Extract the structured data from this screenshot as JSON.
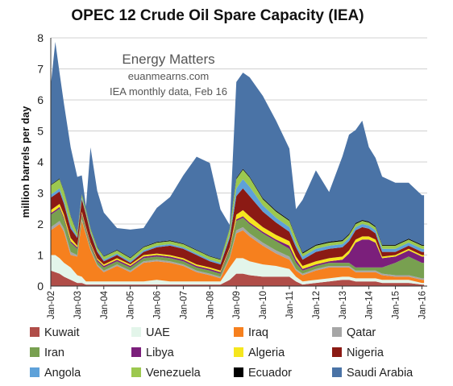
{
  "chart_data": {
    "type": "area",
    "stacked": true,
    "title": "OPEC 12 Crude Oil Spare Capacity (IEA)",
    "ylabel": "million barrels per day",
    "ylim": [
      0,
      8
    ],
    "yticks": [
      "0",
      "1",
      "2",
      "3",
      "4",
      "5",
      "6",
      "7",
      "8"
    ],
    "xlim": [
      2002,
      2016.2
    ],
    "xticks": [
      "Jan-02",
      "Jan-03",
      "Jan-04",
      "Jan-05",
      "Jan-06",
      "Jan-07",
      "Jan-08",
      "Jan-09",
      "Jan-10",
      "Jan-11",
      "Jan-12",
      "Jan-13",
      "Jan-14",
      "Jan-15",
      "Jan-16"
    ],
    "annotations": [
      "Energy Matters",
      "euanmearns.com",
      "IEA monthly data, Feb 16"
    ],
    "grid": "y",
    "legend_position": "bottom",
    "x": [
      2002.0,
      2002.17,
      2002.33,
      2002.5,
      2002.75,
      2003.0,
      2003.17,
      2003.33,
      2003.5,
      2003.75,
      2004.0,
      2004.5,
      2005.0,
      2005.5,
      2006.0,
      2006.5,
      2007.0,
      2007.5,
      2008.0,
      2008.4,
      2008.75,
      2009.0,
      2009.25,
      2009.5,
      2010.0,
      2010.5,
      2011.0,
      2011.25,
      2011.5,
      2012.0,
      2012.5,
      2013.0,
      2013.25,
      2013.5,
      2013.75,
      2014.0,
      2014.25,
      2014.5,
      2015.0,
      2015.5,
      2016.0,
      2016.08
    ],
    "series": [
      {
        "name": "Kuwait",
        "color": "#b04d48",
        "values": [
          0.5,
          0.45,
          0.4,
          0.3,
          0.2,
          0.1,
          0.1,
          0.05,
          0.05,
          0.05,
          0.05,
          0.05,
          0.05,
          0.05,
          0.05,
          0.05,
          0.05,
          0.05,
          0.05,
          0.05,
          0.2,
          0.4,
          0.4,
          0.35,
          0.3,
          0.3,
          0.3,
          0.15,
          0.05,
          0.1,
          0.15,
          0.2,
          0.2,
          0.15,
          0.15,
          0.15,
          0.15,
          0.1,
          0.1,
          0.1,
          0.05,
          0.05
        ]
      },
      {
        "name": "UAE",
        "color": "#e3f5ea",
        "values": [
          0.5,
          0.55,
          0.5,
          0.45,
          0.4,
          0.25,
          0.2,
          0.1,
          0.1,
          0.1,
          0.1,
          0.1,
          0.1,
          0.1,
          0.15,
          0.1,
          0.1,
          0.1,
          0.1,
          0.1,
          0.4,
          0.5,
          0.5,
          0.45,
          0.4,
          0.35,
          0.25,
          0.15,
          0.1,
          0.1,
          0.1,
          0.1,
          0.1,
          0.1,
          0.1,
          0.1,
          0.1,
          0.1,
          0.1,
          0.1,
          0.05,
          0.05
        ]
      },
      {
        "name": "Iraq",
        "color": "#f6801e",
        "values": [
          0.8,
          0.9,
          1.1,
          1.0,
          0.4,
          0.6,
          1.8,
          1.5,
          1.0,
          0.5,
          0.3,
          0.5,
          0.3,
          0.6,
          0.6,
          0.6,
          0.5,
          0.3,
          0.2,
          0.1,
          0.3,
          0.8,
          0.9,
          0.8,
          0.6,
          0.4,
          0.3,
          0.2,
          0.2,
          0.3,
          0.35,
          0.3,
          0.3,
          0.2,
          0.2,
          0.2,
          0.2,
          0.15,
          0.1,
          0.1,
          0.1,
          0.1
        ]
      },
      {
        "name": "Qatar",
        "color": "#a6a6a6",
        "values": [
          0.1,
          0.1,
          0.1,
          0.1,
          0.1,
          0.05,
          0.05,
          0.05,
          0.05,
          0.05,
          0.05,
          0.05,
          0.05,
          0.05,
          0.05,
          0.05,
          0.05,
          0.05,
          0.05,
          0.05,
          0.05,
          0.1,
          0.1,
          0.1,
          0.1,
          0.1,
          0.1,
          0.05,
          0.05,
          0.05,
          0.05,
          0.05,
          0.05,
          0.05,
          0.05,
          0.05,
          0.05,
          0.05,
          0.05,
          0.05,
          0.05,
          0.05
        ]
      },
      {
        "name": "Iran",
        "color": "#78a050",
        "values": [
          0.4,
          0.4,
          0.4,
          0.3,
          0.3,
          0.2,
          0.15,
          0.1,
          0.1,
          0.1,
          0.1,
          0.1,
          0.1,
          0.1,
          0.1,
          0.1,
          0.1,
          0.1,
          0.1,
          0.1,
          0.2,
          0.3,
          0.3,
          0.3,
          0.3,
          0.3,
          0.25,
          0.2,
          0.1,
          0.1,
          0.1,
          0.1,
          0.1,
          0.1,
          0.1,
          0.1,
          0.1,
          0.2,
          0.4,
          0.6,
          0.5,
          0.5
        ]
      },
      {
        "name": "Libya",
        "color": "#7b1f7b",
        "values": [
          0.05,
          0.05,
          0.05,
          0.05,
          0.05,
          0.05,
          0.05,
          0.05,
          0.05,
          0.05,
          0.05,
          0.05,
          0.05,
          0.05,
          0.05,
          0.05,
          0.05,
          0.05,
          0.05,
          0.05,
          0.05,
          0.05,
          0.05,
          0.05,
          0.05,
          0.05,
          0.1,
          0.1,
          0.05,
          0.05,
          0.05,
          0.1,
          0.3,
          0.8,
          0.9,
          0.9,
          0.8,
          0.3,
          0.2,
          0.2,
          0.2,
          0.2
        ]
      },
      {
        "name": "Algeria",
        "color": "#f5e61e",
        "values": [
          0.1,
          0.1,
          0.1,
          0.1,
          0.1,
          0.05,
          0.05,
          0.05,
          0.05,
          0.05,
          0.05,
          0.05,
          0.05,
          0.05,
          0.05,
          0.05,
          0.05,
          0.05,
          0.05,
          0.05,
          0.05,
          0.15,
          0.2,
          0.2,
          0.15,
          0.15,
          0.15,
          0.1,
          0.1,
          0.1,
          0.1,
          0.1,
          0.1,
          0.1,
          0.1,
          0.1,
          0.1,
          0.05,
          0.05,
          0.05,
          0.05,
          0.05
        ]
      },
      {
        "name": "Nigeria",
        "color": "#8b1a14",
        "values": [
          0.4,
          0.4,
          0.4,
          0.35,
          0.3,
          0.25,
          0.4,
          0.4,
          0.3,
          0.2,
          0.1,
          0.1,
          0.05,
          0.1,
          0.2,
          0.3,
          0.3,
          0.3,
          0.2,
          0.2,
          0.3,
          0.6,
          0.7,
          0.65,
          0.5,
          0.4,
          0.3,
          0.3,
          0.2,
          0.3,
          0.3,
          0.3,
          0.3,
          0.3,
          0.3,
          0.25,
          0.2,
          0.15,
          0.1,
          0.1,
          0.1,
          0.1
        ]
      },
      {
        "name": "Angola",
        "color": "#5ea1d9",
        "values": [
          0.1,
          0.1,
          0.1,
          0.1,
          0.1,
          0.05,
          0.05,
          0.05,
          0.05,
          0.05,
          0.05,
          0.05,
          0.05,
          0.05,
          0.05,
          0.05,
          0.05,
          0.05,
          0.05,
          0.05,
          0.1,
          0.25,
          0.3,
          0.3,
          0.2,
          0.15,
          0.15,
          0.1,
          0.1,
          0.1,
          0.1,
          0.1,
          0.1,
          0.1,
          0.1,
          0.1,
          0.1,
          0.1,
          0.1,
          0.1,
          0.1,
          0.1
        ]
      },
      {
        "name": "Venezuela",
        "color": "#9cc84f",
        "values": [
          0.3,
          0.3,
          0.3,
          0.3,
          0.3,
          0.1,
          0.1,
          0.1,
          0.1,
          0.1,
          0.1,
          0.1,
          0.1,
          0.1,
          0.1,
          0.1,
          0.1,
          0.1,
          0.1,
          0.1,
          0.2,
          0.3,
          0.3,
          0.3,
          0.2,
          0.2,
          0.2,
          0.2,
          0.1,
          0.1,
          0.1,
          0.1,
          0.1,
          0.1,
          0.1,
          0.1,
          0.1,
          0.1,
          0.1,
          0.1,
          0.1,
          0.1
        ]
      },
      {
        "name": "Ecuador",
        "color": "#000000",
        "values": [
          0.02,
          0.02,
          0.02,
          0.02,
          0.02,
          0.02,
          0.02,
          0.02,
          0.02,
          0.02,
          0.02,
          0.02,
          0.02,
          0.02,
          0.02,
          0.02,
          0.02,
          0.02,
          0.02,
          0.02,
          0.02,
          0.03,
          0.03,
          0.03,
          0.03,
          0.03,
          0.03,
          0.03,
          0.03,
          0.03,
          0.03,
          0.03,
          0.03,
          0.03,
          0.03,
          0.03,
          0.03,
          0.03,
          0.03,
          0.03,
          0.03,
          0.03
        ]
      },
      {
        "name": "Saudi Arabia",
        "color": "#4a73a6",
        "values": [
          3.2,
          4.5,
          3.4,
          2.8,
          2.2,
          1.8,
          0.6,
          0.1,
          2.6,
          1.8,
          1.4,
          0.7,
          0.9,
          0.6,
          1.1,
          1.4,
          2.2,
          3.0,
          3.0,
          1.6,
          0.1,
          3.1,
          3.1,
          3.2,
          3.3,
          2.9,
          2.3,
          0.9,
          1.7,
          2.4,
          1.6,
          2.7,
          3.2,
          3.0,
          3.2,
          2.4,
          2.2,
          2.2,
          2.0,
          1.8,
          1.6,
          1.6
        ]
      }
    ]
  }
}
